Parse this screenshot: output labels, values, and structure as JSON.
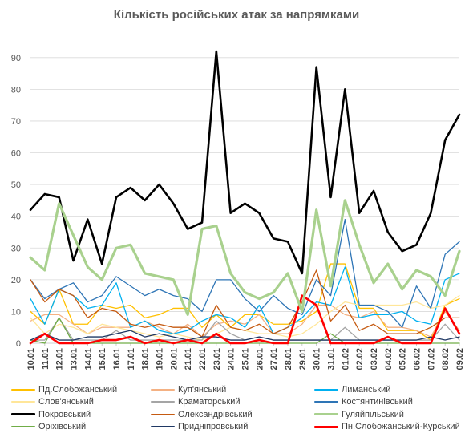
{
  "chart_data": {
    "type": "line",
    "title": "Кількість російських атак за напрямками",
    "xlabel": "",
    "ylabel": "",
    "ylim": [
      0,
      95
    ],
    "yticks": [
      0,
      10,
      20,
      30,
      40,
      50,
      60,
      70,
      80,
      90
    ],
    "grid": true,
    "legend_position": "bottom",
    "categories": [
      "10.01",
      "11.01",
      "12.01",
      "13.01",
      "14.01",
      "15.01",
      "16.01",
      "17.01",
      "18.01",
      "19.01",
      "20.01",
      "21.01",
      "22.01",
      "23.01",
      "24.01",
      "25.01",
      "26.01",
      "27.01",
      "28.01",
      "29.01",
      "30.01",
      "31.01",
      "01.02",
      "02.02",
      "03.02",
      "04.02",
      "05.02",
      "06.02",
      "07.02",
      "08.02",
      "09.02"
    ],
    "category_labels": [
      "10.01",
      "11.01",
      "12.01",
      "13.01",
      "14.01",
      "15.01",
      "16.01",
      "17.01",
      "18.01",
      "19.01",
      "20.01",
      "21.01",
      "22.01",
      "23.01",
      "24.01",
      "25.01",
      "26.01",
      "27.01",
      "28.01",
      "29.01",
      "30.01",
      "31.01",
      "01.02",
      "02.02",
      "03.02",
      "04.02",
      "05.02",
      "06.02",
      "07.02",
      "08.02",
      "09.02"
    ],
    "series": [
      {
        "name": "Пд.Слобожанський",
        "color": "#FFC000",
        "width": 1.3,
        "values": [
          10,
          6,
          17,
          6,
          6,
          12,
          11,
          12,
          8,
          9,
          11,
          11,
          5,
          9,
          5,
          9,
          9,
          6,
          6,
          7,
          10,
          25,
          25,
          11,
          11,
          4,
          4,
          4,
          1,
          12,
          14
        ]
      },
      {
        "name": "Куп'янський",
        "color": "#F4B183",
        "width": 1.3,
        "values": [
          7,
          9,
          9,
          6,
          3,
          5,
          5,
          5,
          7,
          5,
          3,
          6,
          2,
          6,
          7,
          6,
          9,
          3,
          3,
          6,
          12,
          12,
          9,
          8,
          10,
          5,
          5,
          4,
          2,
          10,
          4
        ]
      },
      {
        "name": "Лиманський",
        "color": "#00B0F0",
        "width": 1.3,
        "values": [
          14,
          6,
          17,
          15,
          11,
          12,
          19,
          5,
          7,
          4,
          3,
          4,
          7,
          9,
          8,
          5,
          12,
          3,
          5,
          8,
          13,
          12,
          24,
          8,
          9,
          9,
          10,
          7,
          6,
          20,
          22
        ]
      },
      {
        "name": "Слов'янський",
        "color": "#FFE699",
        "width": 1.3,
        "values": [
          8,
          3,
          6,
          5,
          3,
          6,
          5,
          4,
          3,
          2,
          3,
          2,
          1,
          3,
          5,
          4,
          3,
          3,
          2,
          3,
          6,
          10,
          13,
          12,
          12,
          12,
          12,
          13,
          11,
          12,
          15
        ]
      },
      {
        "name": "Краматорський",
        "color": "#A5A5A5",
        "width": 1.3,
        "values": [
          1,
          1,
          8,
          1,
          1,
          1,
          4,
          1,
          1,
          1,
          1,
          1,
          1,
          7,
          3,
          1,
          2,
          1,
          1,
          1,
          1,
          1,
          5,
          1,
          1,
          1,
          1,
          1,
          1,
          6,
          1
        ]
      },
      {
        "name": "Костянтинівський",
        "color": "#2E75B6",
        "width": 1.3,
        "values": [
          20,
          14,
          17,
          19,
          13,
          15,
          21,
          18,
          15,
          17,
          15,
          14,
          10,
          20,
          20,
          14,
          10,
          15,
          11,
          9,
          20,
          15,
          39,
          12,
          12,
          10,
          5,
          18,
          11,
          28,
          32
        ]
      },
      {
        "name": "Покровський",
        "color": "#000000",
        "width": 2.6,
        "values": [
          42,
          47,
          46,
          26,
          39,
          25,
          46,
          49,
          45,
          50,
          44,
          36,
          38,
          92,
          41,
          44,
          41,
          33,
          32,
          22,
          87,
          46,
          80,
          41,
          48,
          35,
          29,
          31,
          41,
          64,
          72
        ]
      },
      {
        "name": "Олександрівський",
        "color": "#C55A11",
        "width": 1.3,
        "values": [
          20,
          13,
          17,
          15,
          8,
          11,
          10,
          6,
          5,
          6,
          5,
          5,
          2,
          12,
          5,
          4,
          6,
          3,
          5,
          13,
          23,
          7,
          12,
          4,
          6,
          3,
          3,
          3,
          5,
          8,
          8
        ]
      },
      {
        "name": "Гуляйпільський",
        "color": "#A9D18E",
        "width": 3.2,
        "values": [
          27,
          23,
          44,
          34,
          24,
          20,
          30,
          31,
          22,
          21,
          20,
          9,
          36,
          37,
          22,
          16,
          14,
          16,
          22,
          10,
          42,
          18,
          45,
          31,
          19,
          25,
          17,
          23,
          21,
          15,
          29
        ]
      },
      {
        "name": "Оріхівський",
        "color": "#70AD47",
        "width": 1.3,
        "values": [
          1,
          0,
          8,
          0,
          0,
          0,
          0,
          0,
          0,
          0,
          0,
          0,
          0,
          0,
          0,
          0,
          0,
          0,
          0,
          0,
          0,
          3,
          0,
          0,
          0,
          0,
          0,
          0,
          0,
          0,
          0
        ]
      },
      {
        "name": "Придніпровський",
        "color": "#1F3864",
        "width": 1.3,
        "values": [
          1,
          3,
          1,
          1,
          2,
          2,
          3,
          4,
          2,
          3,
          2,
          1,
          2,
          2,
          1,
          1,
          2,
          1,
          1,
          1,
          1,
          1,
          1,
          1,
          1,
          1,
          1,
          1,
          2,
          1,
          2
        ]
      },
      {
        "name": "Пн.Слобожанський-Курський",
        "color": "#FF0000",
        "width": 2.6,
        "values": [
          0,
          3,
          0,
          0,
          0,
          1,
          1,
          2,
          0,
          1,
          0,
          1,
          0,
          3,
          0,
          0,
          1,
          0,
          0,
          15,
          12,
          0,
          0,
          0,
          0,
          2,
          0,
          0,
          0,
          11,
          3
        ]
      }
    ]
  }
}
